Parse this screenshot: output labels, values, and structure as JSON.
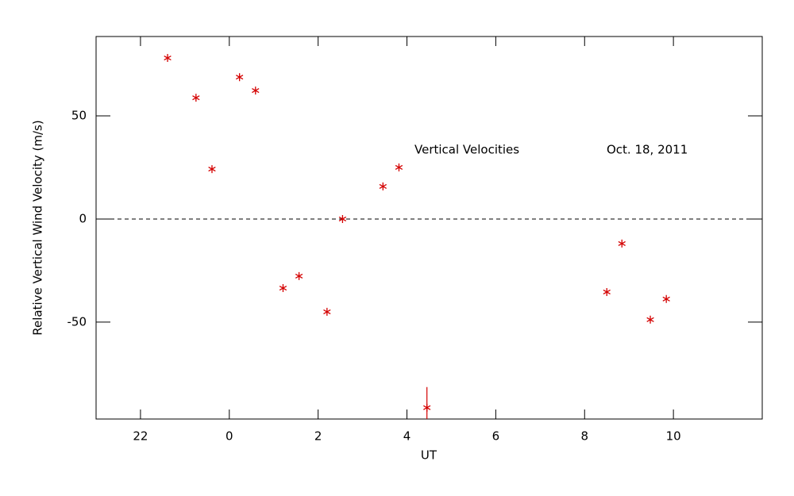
{
  "chart_data": {
    "type": "scatter",
    "xlabel": "UT",
    "ylabel": "Relative Vertical Wind Velocity (m/s)",
    "annotations": [
      "Vertical Velocities",
      "Oct. 18, 2011"
    ],
    "xlim": [
      -3,
      12
    ],
    "xticks": [
      {
        "value": -2,
        "label": "22"
      },
      0,
      2,
      4,
      6,
      8,
      10
    ],
    "ylim": [
      -97,
      88.5
    ],
    "yticks": [
      -50,
      0,
      50
    ],
    "reference_line": 0,
    "series": [
      {
        "color": "#d40000",
        "x": [
          -1.39,
          -0.75,
          -0.39,
          0.23,
          0.59,
          1.21,
          1.57,
          2.2,
          2.55,
          3.46,
          3.82,
          4.45,
          8.5,
          8.84,
          9.48,
          9.84
        ],
        "values": [
          78.1,
          58.8,
          24.2,
          68.8,
          62.3,
          -33.5,
          -27.7,
          -45,
          0,
          15.8,
          25,
          -91.5,
          -35.4,
          -11.9,
          -48.8,
          -38.8
        ],
        "errors": [
          null,
          null,
          null,
          null,
          null,
          null,
          null,
          null,
          null,
          null,
          null,
          10,
          null,
          null,
          null,
          null
        ]
      }
    ]
  }
}
